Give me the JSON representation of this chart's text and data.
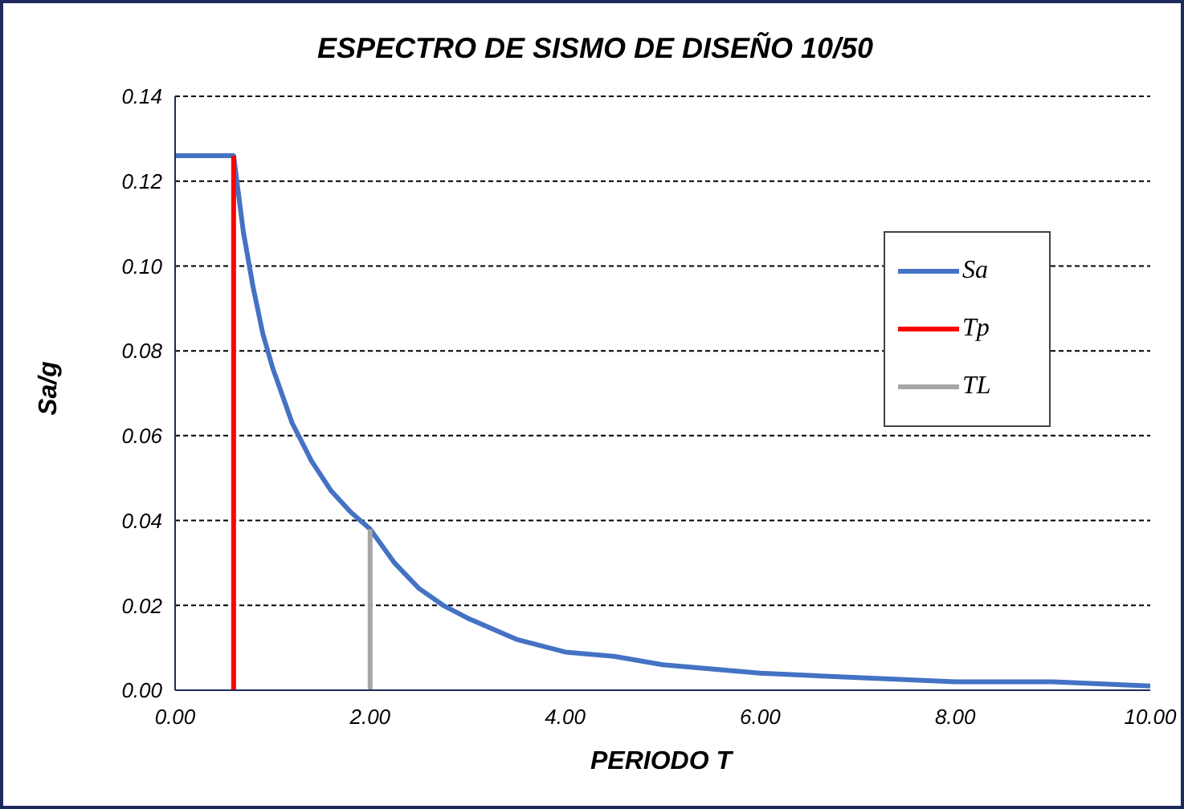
{
  "chart_data": {
    "type": "line",
    "title": "ESPECTRO DE SISMO DE DISEÑO 10/50",
    "xlabel": "PERIODO T",
    "ylabel": "Sa/g",
    "xlim": [
      0,
      10
    ],
    "xticks": [
      {
        "value": 0,
        "label": "0.00"
      },
      {
        "value": 2,
        "label": "2.00"
      },
      {
        "value": 4,
        "label": "4.00"
      },
      {
        "value": 6,
        "label": "6.00"
      },
      {
        "value": 8,
        "label": "8.00"
      },
      {
        "value": 10,
        "label": "10.00"
      }
    ],
    "ylim": [
      0,
      0.14
    ],
    "yticks": [
      {
        "value": 0,
        "label": "0.00"
      },
      {
        "value": 0.02,
        "label": "0.02"
      },
      {
        "value": 0.04,
        "label": "0.04"
      },
      {
        "value": 0.06,
        "label": "0.06"
      },
      {
        "value": 0.08,
        "label": "0.08"
      },
      {
        "value": 0.1,
        "label": "0.10"
      },
      {
        "value": 0.12,
        "label": "0.12"
      },
      {
        "value": 0.14,
        "label": "0.14"
      }
    ],
    "grid": "y",
    "legend": "right",
    "marker": "none",
    "line_style": "solid",
    "series": [
      {
        "name": "Sa",
        "color": "#4472c4",
        "x": [
          0,
          0.6,
          0.7,
          0.8,
          0.9,
          1.0,
          1.2,
          1.4,
          1.6,
          1.8,
          2.0,
          2.25,
          2.5,
          2.75,
          3,
          3.5,
          4,
          4.5,
          5,
          6,
          7,
          8,
          9,
          10
        ],
        "values": [
          0.126,
          0.126,
          0.108,
          0.095,
          0.084,
          0.076,
          0.063,
          0.054,
          0.047,
          0.042,
          0.038,
          0.03,
          0.024,
          0.02,
          0.017,
          0.012,
          0.009,
          0.008,
          0.006,
          0.004,
          0.003,
          0.002,
          0.002,
          0.001
        ]
      },
      {
        "name": "Tp",
        "color": "#ff0000",
        "x": [
          0.6,
          0.6
        ],
        "values": [
          0,
          0.126
        ]
      },
      {
        "name": "TL",
        "color": "#a6a6a6",
        "x": [
          2,
          2
        ],
        "values": [
          0,
          0.038
        ]
      }
    ]
  }
}
